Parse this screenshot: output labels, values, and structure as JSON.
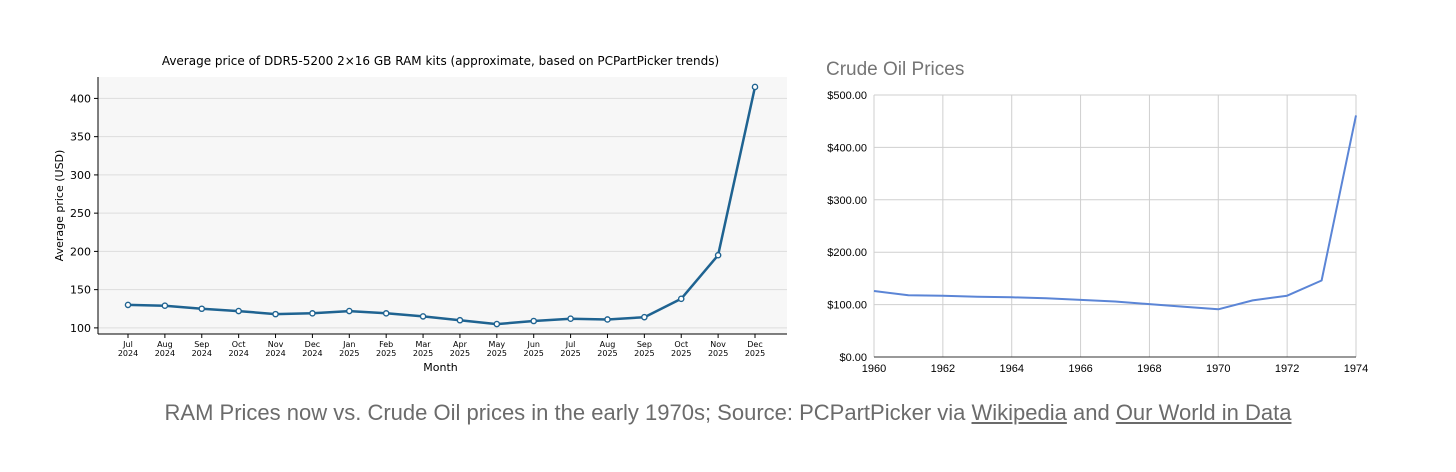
{
  "chart_data": [
    {
      "type": "line",
      "title": "Average price of DDR5-5200 2×16 GB RAM kits (approximate, based on PCPartPicker trends)",
      "xlabel": "Month",
      "ylabel": "Average price (USD)",
      "categories": [
        [
          "Jul",
          "2024"
        ],
        [
          "Aug",
          "2024"
        ],
        [
          "Sep",
          "2024"
        ],
        [
          "Oct",
          "2024"
        ],
        [
          "Nov",
          "2024"
        ],
        [
          "Dec",
          "2024"
        ],
        [
          "Jan",
          "2025"
        ],
        [
          "Feb",
          "2025"
        ],
        [
          "Mar",
          "2025"
        ],
        [
          "Apr",
          "2025"
        ],
        [
          "May",
          "2025"
        ],
        [
          "Jun",
          "2025"
        ],
        [
          "Jul",
          "2025"
        ],
        [
          "Aug",
          "2025"
        ],
        [
          "Sep",
          "2025"
        ],
        [
          "Oct",
          "2025"
        ],
        [
          "Nov",
          "2025"
        ],
        [
          "Dec",
          "2025"
        ]
      ],
      "series": [
        {
          "values": [
            130,
            129,
            125,
            122,
            118,
            119,
            122,
            119,
            115,
            110,
            105,
            109,
            112,
            111,
            114,
            138,
            195,
            415
          ]
        }
      ],
      "ylim": [
        92,
        428
      ],
      "yticks": [
        100,
        150,
        200,
        250,
        300,
        350,
        400
      ],
      "grid": true,
      "color": "#1f6391"
    },
    {
      "type": "line",
      "title": "Crude Oil Prices",
      "xlabel": "",
      "ylabel": "",
      "x": [
        1960,
        1961,
        1962,
        1963,
        1964,
        1965,
        1966,
        1967,
        1968,
        1969,
        1970,
        1971,
        1972,
        1973,
        1974
      ],
      "series": [
        {
          "values": [
            126,
            118,
            117,
            115,
            114,
            112,
            109,
            106,
            101,
            96,
            91,
            108,
            117,
            146,
            461
          ]
        }
      ],
      "xlim": [
        1960,
        1974
      ],
      "ylim": [
        0,
        500
      ],
      "xticks": [
        1960,
        1962,
        1964,
        1966,
        1968,
        1970,
        1972,
        1974
      ],
      "yticks": [
        0,
        100,
        200,
        300,
        400,
        500
      ],
      "ytick_labels": [
        "$0.00",
        "$100.00",
        "$200.00",
        "$300.00",
        "$400.00",
        "$500.00"
      ],
      "grid": true,
      "color": "#5b85d6"
    }
  ],
  "caption": {
    "text": "RAM Prices now vs. Crude Oil prices in the early 1970s; Source: PCPartPicker via ",
    "link1": "Wikipedia",
    "middle": " and ",
    "link2": "Our World in Data"
  }
}
